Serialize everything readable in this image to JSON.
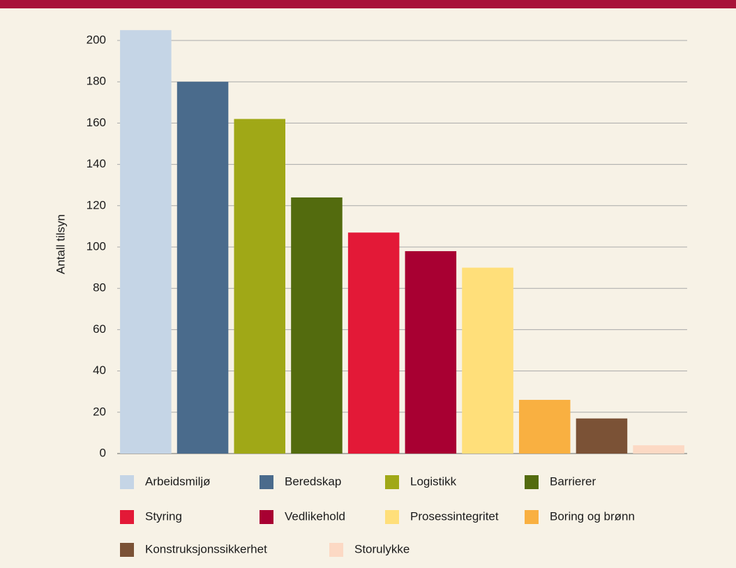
{
  "chart_data": {
    "type": "bar",
    "y_label": "Antall tilsyn",
    "categories": [
      "Arbeidsmiljø",
      "Beredskap",
      "Logistikk",
      "Barrierer",
      "Styring",
      "Vedlikehold",
      "Prosessintegritet",
      "Boring og brønn",
      "Konstruksjonssikkerhet",
      "Storulykke"
    ],
    "values": [
      205,
      180,
      162,
      124,
      107,
      98,
      90,
      26,
      17,
      4
    ],
    "colors": [
      "#c5d5e6",
      "#4a6b8c",
      "#a0a817",
      "#536b0e",
      "#e31937",
      "#a80032",
      "#ffdf7a",
      "#f9b041",
      "#7b5236",
      "#fcd9c4"
    ],
    "ylim": [
      0,
      210
    ],
    "yticks": [
      0,
      20,
      40,
      60,
      80,
      100,
      120,
      140,
      160,
      180,
      200
    ],
    "grid": true,
    "legend": "bottom"
  }
}
